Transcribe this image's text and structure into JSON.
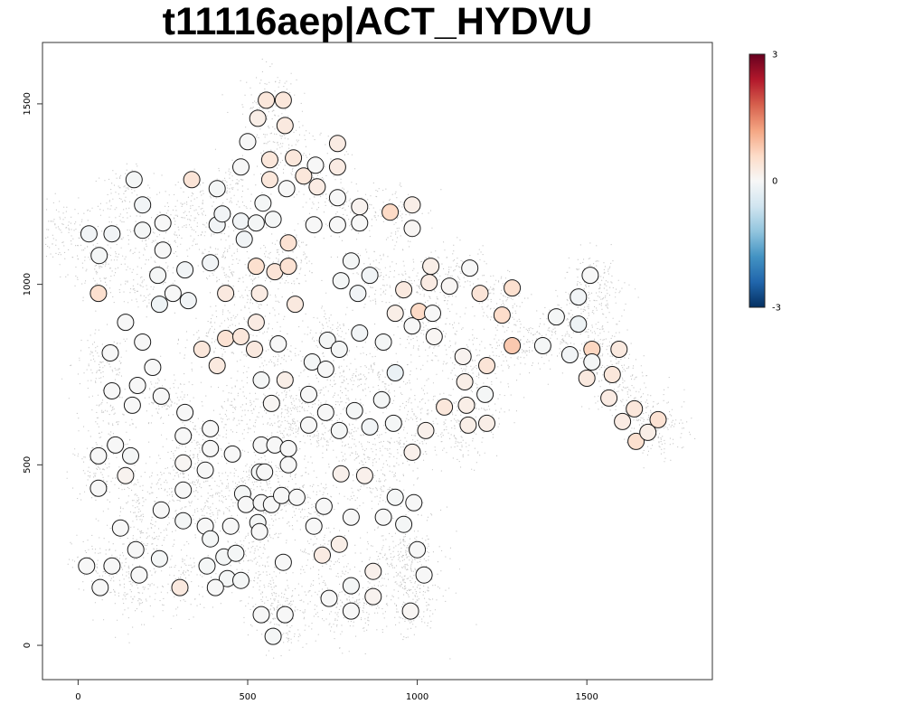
{
  "chart_data": {
    "type": "scatter",
    "title": "t11116aep|ACT_HYDVU",
    "xlabel": "",
    "ylabel": "",
    "xlim": [
      -105,
      1870
    ],
    "ylim": [
      -95,
      1670
    ],
    "x_ticks": [
      0,
      500,
      1000,
      1500
    ],
    "x_tick_labels": [
      "0",
      "500",
      "1000",
      "1500"
    ],
    "y_ticks": [
      0,
      500,
      1000,
      1500
    ],
    "y_tick_labels": [
      "0",
      "500",
      "1000",
      "1500"
    ],
    "grid": false,
    "colorbar": {
      "min": -3,
      "max": 3,
      "tick_values": [
        3,
        0,
        -3
      ],
      "tick_labels": [
        "3",
        "0",
        "-3"
      ],
      "colors": [
        "#053061",
        "#2166ac",
        "#4393c3",
        "#92c5de",
        "#d1e5f0",
        "#f7f7f7",
        "#fddbc7",
        "#f4a582",
        "#d6604d",
        "#b2182b",
        "#67001f"
      ],
      "placement": "right"
    },
    "background_cloud_color": "#c8c8c8",
    "background_cloud_clusters": [
      [
        -40,
        1140
      ],
      [
        60,
        1060
      ],
      [
        130,
        1230
      ],
      [
        70,
        780
      ],
      [
        100,
        640
      ],
      [
        60,
        480
      ],
      [
        170,
        400
      ],
      [
        70,
        220
      ],
      [
        210,
        280
      ],
      [
        170,
        150
      ],
      [
        330,
        180
      ],
      [
        260,
        680
      ],
      [
        350,
        560
      ],
      [
        290,
        470
      ],
      [
        350,
        380
      ],
      [
        460,
        430
      ],
      [
        560,
        480
      ],
      [
        560,
        370
      ],
      [
        520,
        230
      ],
      [
        570,
        120
      ],
      [
        590,
        70
      ],
      [
        700,
        610
      ],
      [
        690,
        420
      ],
      [
        720,
        260
      ],
      [
        750,
        120
      ],
      [
        830,
        100
      ],
      [
        930,
        230
      ],
      [
        980,
        290
      ],
      [
        990,
        180
      ],
      [
        980,
        100
      ],
      [
        870,
        440
      ],
      [
        940,
        540
      ],
      [
        1000,
        640
      ],
      [
        1130,
        590
      ],
      [
        1190,
        690
      ],
      [
        1160,
        790
      ],
      [
        1030,
        860
      ],
      [
        1000,
        980
      ],
      [
        1120,
        1030
      ],
      [
        1240,
        960
      ],
      [
        1310,
        840
      ],
      [
        1420,
        850
      ],
      [
        1490,
        950
      ],
      [
        1540,
        830
      ],
      [
        1580,
        740
      ],
      [
        1660,
        640
      ],
      [
        1720,
        600
      ],
      [
        1530,
        1000
      ],
      [
        870,
        1020
      ],
      [
        920,
        1210
      ],
      [
        760,
        1200
      ],
      [
        700,
        1310
      ],
      [
        590,
        1380
      ],
      [
        560,
        1510
      ],
      [
        450,
        1260
      ],
      [
        340,
        1200
      ],
      [
        250,
        1140
      ],
      [
        200,
        1010
      ],
      [
        440,
        1070
      ],
      [
        520,
        970
      ],
      [
        620,
        1060
      ],
      [
        400,
        850
      ],
      [
        560,
        820
      ],
      [
        740,
        860
      ],
      [
        650,
        680
      ],
      [
        470,
        660
      ],
      [
        590,
        610
      ],
      [
        770,
        720
      ],
      [
        810,
        560
      ],
      [
        900,
        760
      ]
    ],
    "points": [
      {
        "x": 32,
        "y": 1140,
        "v": -0.1
      },
      {
        "x": 100,
        "y": 1140,
        "v": -0.1
      },
      {
        "x": 62,
        "y": 1080,
        "v": -0.05
      },
      {
        "x": 60,
        "y": 975,
        "v": 0.5
      },
      {
        "x": 165,
        "y": 1290,
        "v": -0.05
      },
      {
        "x": 190,
        "y": 1220,
        "v": -0.1
      },
      {
        "x": 190,
        "y": 1150,
        "v": -0.05
      },
      {
        "x": 250,
        "y": 1170,
        "v": 0
      },
      {
        "x": 250,
        "y": 1095,
        "v": 0
      },
      {
        "x": 235,
        "y": 1025,
        "v": -0.05
      },
      {
        "x": 240,
        "y": 945,
        "v": -0.15
      },
      {
        "x": 280,
        "y": 975,
        "v": 0
      },
      {
        "x": 315,
        "y": 1040,
        "v": -0.1
      },
      {
        "x": 325,
        "y": 955,
        "v": -0.1
      },
      {
        "x": 335,
        "y": 1290,
        "v": 0.4
      },
      {
        "x": 410,
        "y": 1265,
        "v": -0.05
      },
      {
        "x": 410,
        "y": 1165,
        "v": -0.1
      },
      {
        "x": 425,
        "y": 1195,
        "v": -0.1
      },
      {
        "x": 390,
        "y": 1060,
        "v": -0.1
      },
      {
        "x": 435,
        "y": 975,
        "v": 0.3
      },
      {
        "x": 480,
        "y": 1325,
        "v": 0
      },
      {
        "x": 500,
        "y": 1395,
        "v": 0
      },
      {
        "x": 480,
        "y": 1175,
        "v": -0.1
      },
      {
        "x": 490,
        "y": 1125,
        "v": -0.1
      },
      {
        "x": 525,
        "y": 1170,
        "v": -0.05
      },
      {
        "x": 545,
        "y": 1225,
        "v": -0.05
      },
      {
        "x": 575,
        "y": 1180,
        "v": -0.05
      },
      {
        "x": 530,
        "y": 1460,
        "v": 0.2
      },
      {
        "x": 555,
        "y": 1510,
        "v": 0.35
      },
      {
        "x": 605,
        "y": 1510,
        "v": 0.35
      },
      {
        "x": 610,
        "y": 1440,
        "v": 0.3
      },
      {
        "x": 565,
        "y": 1345,
        "v": 0.35
      },
      {
        "x": 565,
        "y": 1290,
        "v": 0.35
      },
      {
        "x": 615,
        "y": 1265,
        "v": 0
      },
      {
        "x": 635,
        "y": 1350,
        "v": 0.35
      },
      {
        "x": 665,
        "y": 1300,
        "v": 0.35
      },
      {
        "x": 700,
        "y": 1330,
        "v": 0
      },
      {
        "x": 705,
        "y": 1270,
        "v": 0.25
      },
      {
        "x": 765,
        "y": 1390,
        "v": 0.25
      },
      {
        "x": 765,
        "y": 1325,
        "v": 0.25
      },
      {
        "x": 765,
        "y": 1240,
        "v": 0
      },
      {
        "x": 765,
        "y": 1165,
        "v": 0
      },
      {
        "x": 695,
        "y": 1165,
        "v": 0
      },
      {
        "x": 620,
        "y": 1115,
        "v": 0.45
      },
      {
        "x": 525,
        "y": 1050,
        "v": 0.5
      },
      {
        "x": 580,
        "y": 1035,
        "v": 0.4
      },
      {
        "x": 620,
        "y": 1050,
        "v": 0.45
      },
      {
        "x": 535,
        "y": 975,
        "v": 0.25
      },
      {
        "x": 640,
        "y": 945,
        "v": 0.3
      },
      {
        "x": 830,
        "y": 1215,
        "v": 0.1
      },
      {
        "x": 830,
        "y": 1170,
        "v": 0
      },
      {
        "x": 920,
        "y": 1200,
        "v": 0.6
      },
      {
        "x": 985,
        "y": 1220,
        "v": 0.2
      },
      {
        "x": 985,
        "y": 1155,
        "v": 0.05
      },
      {
        "x": 805,
        "y": 1065,
        "v": -0.05
      },
      {
        "x": 775,
        "y": 1010,
        "v": -0.05
      },
      {
        "x": 825,
        "y": 975,
        "v": -0.1
      },
      {
        "x": 860,
        "y": 1025,
        "v": -0.1
      },
      {
        "x": 140,
        "y": 895,
        "v": 0
      },
      {
        "x": 190,
        "y": 840,
        "v": 0
      },
      {
        "x": 95,
        "y": 810,
        "v": 0
      },
      {
        "x": 100,
        "y": 705,
        "v": 0
      },
      {
        "x": 175,
        "y": 720,
        "v": 0
      },
      {
        "x": 220,
        "y": 770,
        "v": 0
      },
      {
        "x": 160,
        "y": 665,
        "v": 0
      },
      {
        "x": 245,
        "y": 690,
        "v": 0
      },
      {
        "x": 365,
        "y": 820,
        "v": 0.35
      },
      {
        "x": 410,
        "y": 775,
        "v": 0.3
      },
      {
        "x": 435,
        "y": 850,
        "v": 0.45
      },
      {
        "x": 480,
        "y": 855,
        "v": 0.35
      },
      {
        "x": 520,
        "y": 820,
        "v": 0.3
      },
      {
        "x": 525,
        "y": 895,
        "v": 0.25
      },
      {
        "x": 590,
        "y": 835,
        "v": 0
      },
      {
        "x": 540,
        "y": 735,
        "v": -0.05
      },
      {
        "x": 610,
        "y": 735,
        "v": 0.2
      },
      {
        "x": 570,
        "y": 670,
        "v": 0.05
      },
      {
        "x": 690,
        "y": 785,
        "v": -0.05
      },
      {
        "x": 730,
        "y": 765,
        "v": 0
      },
      {
        "x": 735,
        "y": 845,
        "v": -0.05
      },
      {
        "x": 770,
        "y": 820,
        "v": -0.05
      },
      {
        "x": 830,
        "y": 865,
        "v": -0.1
      },
      {
        "x": 900,
        "y": 840,
        "v": -0.05
      },
      {
        "x": 935,
        "y": 920,
        "v": 0.2
      },
      {
        "x": 985,
        "y": 885,
        "v": 0
      },
      {
        "x": 1005,
        "y": 925,
        "v": 0.6
      },
      {
        "x": 1045,
        "y": 920,
        "v": 0
      },
      {
        "x": 1050,
        "y": 855,
        "v": 0.05
      },
      {
        "x": 960,
        "y": 985,
        "v": 0.3
      },
      {
        "x": 1040,
        "y": 1050,
        "v": 0.2
      },
      {
        "x": 1035,
        "y": 1005,
        "v": 0.25
      },
      {
        "x": 1095,
        "y": 995,
        "v": 0.05
      },
      {
        "x": 1155,
        "y": 1045,
        "v": 0
      },
      {
        "x": 1185,
        "y": 975,
        "v": 0.4
      },
      {
        "x": 1280,
        "y": 990,
        "v": 0.5
      },
      {
        "x": 1250,
        "y": 915,
        "v": 0.55
      },
      {
        "x": 1280,
        "y": 830,
        "v": 0.8
      },
      {
        "x": 1370,
        "y": 830,
        "v": -0.05
      },
      {
        "x": 1410,
        "y": 910,
        "v": -0.05
      },
      {
        "x": 1450,
        "y": 805,
        "v": -0.1
      },
      {
        "x": 1475,
        "y": 965,
        "v": -0.1
      },
      {
        "x": 1475,
        "y": 890,
        "v": -0.15
      },
      {
        "x": 1510,
        "y": 1025,
        "v": 0
      },
      {
        "x": 1515,
        "y": 820,
        "v": 0.65
      },
      {
        "x": 1515,
        "y": 785,
        "v": -0.05
      },
      {
        "x": 1595,
        "y": 820,
        "v": 0.3
      },
      {
        "x": 1500,
        "y": 740,
        "v": 0.3
      },
      {
        "x": 1575,
        "y": 750,
        "v": 0.35
      },
      {
        "x": 1565,
        "y": 685,
        "v": 0.25
      },
      {
        "x": 1640,
        "y": 655,
        "v": 0.35
      },
      {
        "x": 1605,
        "y": 620,
        "v": 0.25
      },
      {
        "x": 1645,
        "y": 565,
        "v": 0.5
      },
      {
        "x": 1680,
        "y": 590,
        "v": 0.2
      },
      {
        "x": 1710,
        "y": 625,
        "v": 0.45
      },
      {
        "x": 1135,
        "y": 800,
        "v": 0.1
      },
      {
        "x": 1140,
        "y": 730,
        "v": 0.2
      },
      {
        "x": 1205,
        "y": 775,
        "v": 0.4
      },
      {
        "x": 1200,
        "y": 695,
        "v": -0.05
      },
      {
        "x": 1080,
        "y": 660,
        "v": 0.35
      },
      {
        "x": 1145,
        "y": 665,
        "v": 0.2
      },
      {
        "x": 1150,
        "y": 610,
        "v": 0.2
      },
      {
        "x": 1205,
        "y": 615,
        "v": 0.2
      },
      {
        "x": 1025,
        "y": 595,
        "v": 0.15
      },
      {
        "x": 935,
        "y": 755,
        "v": -0.2
      },
      {
        "x": 895,
        "y": 680,
        "v": -0.05
      },
      {
        "x": 930,
        "y": 615,
        "v": -0.05
      },
      {
        "x": 985,
        "y": 535,
        "v": 0.15
      },
      {
        "x": 860,
        "y": 605,
        "v": -0.1
      },
      {
        "x": 815,
        "y": 650,
        "v": -0.05
      },
      {
        "x": 770,
        "y": 595,
        "v": -0.05
      },
      {
        "x": 730,
        "y": 645,
        "v": 0
      },
      {
        "x": 680,
        "y": 695,
        "v": 0
      },
      {
        "x": 680,
        "y": 610,
        "v": 0
      },
      {
        "x": 60,
        "y": 525,
        "v": 0
      },
      {
        "x": 110,
        "y": 555,
        "v": 0
      },
      {
        "x": 155,
        "y": 525,
        "v": -0.05
      },
      {
        "x": 60,
        "y": 435,
        "v": 0
      },
      {
        "x": 140,
        "y": 470,
        "v": 0.1
      },
      {
        "x": 125,
        "y": 325,
        "v": 0
      },
      {
        "x": 245,
        "y": 375,
        "v": 0
      },
      {
        "x": 310,
        "y": 345,
        "v": -0.05
      },
      {
        "x": 310,
        "y": 430,
        "v": 0
      },
      {
        "x": 310,
        "y": 505,
        "v": 0.05
      },
      {
        "x": 310,
        "y": 580,
        "v": 0
      },
      {
        "x": 315,
        "y": 645,
        "v": 0
      },
      {
        "x": 390,
        "y": 600,
        "v": 0
      },
      {
        "x": 390,
        "y": 545,
        "v": 0
      },
      {
        "x": 375,
        "y": 485,
        "v": 0
      },
      {
        "x": 455,
        "y": 530,
        "v": 0
      },
      {
        "x": 540,
        "y": 555,
        "v": 0
      },
      {
        "x": 580,
        "y": 555,
        "v": 0
      },
      {
        "x": 620,
        "y": 545,
        "v": 0
      },
      {
        "x": 620,
        "y": 500,
        "v": 0
      },
      {
        "x": 535,
        "y": 480,
        "v": -0.05
      },
      {
        "x": 550,
        "y": 480,
        "v": 0
      },
      {
        "x": 485,
        "y": 420,
        "v": -0.05
      },
      {
        "x": 495,
        "y": 390,
        "v": 0
      },
      {
        "x": 540,
        "y": 395,
        "v": 0
      },
      {
        "x": 570,
        "y": 390,
        "v": 0
      },
      {
        "x": 600,
        "y": 415,
        "v": 0
      },
      {
        "x": 645,
        "y": 410,
        "v": 0
      },
      {
        "x": 530,
        "y": 340,
        "v": -0.05
      },
      {
        "x": 535,
        "y": 315,
        "v": 0
      },
      {
        "x": 375,
        "y": 330,
        "v": 0
      },
      {
        "x": 390,
        "y": 295,
        "v": -0.05
      },
      {
        "x": 450,
        "y": 330,
        "v": 0
      },
      {
        "x": 430,
        "y": 245,
        "v": -0.05
      },
      {
        "x": 465,
        "y": 255,
        "v": -0.05
      },
      {
        "x": 380,
        "y": 220,
        "v": -0.05
      },
      {
        "x": 440,
        "y": 185,
        "v": -0.05
      },
      {
        "x": 480,
        "y": 180,
        "v": -0.05
      },
      {
        "x": 405,
        "y": 160,
        "v": 0
      },
      {
        "x": 300,
        "y": 160,
        "v": 0.3
      },
      {
        "x": 240,
        "y": 240,
        "v": -0.05
      },
      {
        "x": 170,
        "y": 265,
        "v": 0
      },
      {
        "x": 180,
        "y": 195,
        "v": 0
      },
      {
        "x": 25,
        "y": 220,
        "v": 0
      },
      {
        "x": 100,
        "y": 220,
        "v": 0
      },
      {
        "x": 65,
        "y": 160,
        "v": 0
      },
      {
        "x": 540,
        "y": 85,
        "v": 0
      },
      {
        "x": 610,
        "y": 85,
        "v": 0
      },
      {
        "x": 575,
        "y": 25,
        "v": -0.05
      },
      {
        "x": 605,
        "y": 230,
        "v": 0
      },
      {
        "x": 695,
        "y": 330,
        "v": 0
      },
      {
        "x": 725,
        "y": 385,
        "v": 0
      },
      {
        "x": 775,
        "y": 475,
        "v": 0.15
      },
      {
        "x": 845,
        "y": 470,
        "v": 0.15
      },
      {
        "x": 805,
        "y": 355,
        "v": 0
      },
      {
        "x": 770,
        "y": 280,
        "v": 0.2
      },
      {
        "x": 720,
        "y": 250,
        "v": 0.25
      },
      {
        "x": 740,
        "y": 130,
        "v": 0
      },
      {
        "x": 805,
        "y": 165,
        "v": -0.05
      },
      {
        "x": 805,
        "y": 95,
        "v": 0
      },
      {
        "x": 870,
        "y": 205,
        "v": 0.15
      },
      {
        "x": 870,
        "y": 135,
        "v": 0.1
      },
      {
        "x": 900,
        "y": 355,
        "v": 0
      },
      {
        "x": 935,
        "y": 410,
        "v": -0.05
      },
      {
        "x": 960,
        "y": 335,
        "v": -0.05
      },
      {
        "x": 990,
        "y": 395,
        "v": 0
      },
      {
        "x": 1000,
        "y": 265,
        "v": 0
      },
      {
        "x": 1020,
        "y": 195,
        "v": 0
      },
      {
        "x": 980,
        "y": 95,
        "v": 0.05
      }
    ]
  }
}
